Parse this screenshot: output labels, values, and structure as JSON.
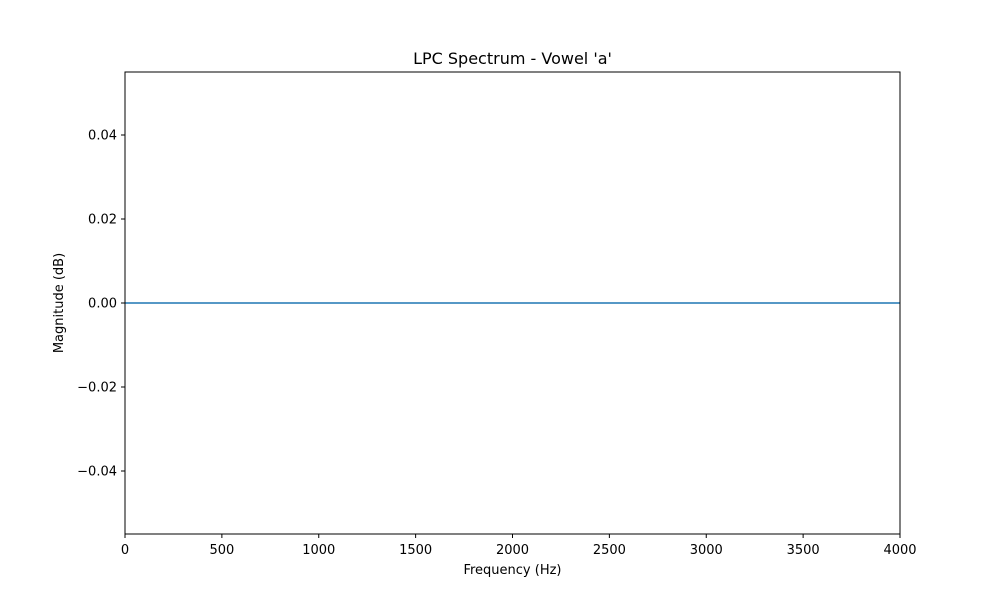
{
  "chart_data": {
    "type": "line",
    "title": "LPC Spectrum - Vowel 'a'",
    "xlabel": "Frequency (Hz)",
    "ylabel": "Magnitude (dB)",
    "xlim": [
      0,
      4000
    ],
    "ylim": [
      -0.055,
      0.055
    ],
    "xticks": [
      0,
      500,
      1000,
      1500,
      2000,
      2500,
      3000,
      3500,
      4000
    ],
    "xtick_labels": [
      "0",
      "500",
      "1000",
      "1500",
      "2000",
      "2500",
      "3000",
      "3500",
      "4000"
    ],
    "yticks": [
      -0.04,
      -0.02,
      0.0,
      0.02,
      0.04
    ],
    "ytick_labels": [
      "−0.04",
      "−0.02",
      "0.00",
      "0.02",
      "0.04"
    ],
    "grid": false,
    "series": [
      {
        "color": "#1f77b4",
        "x": [
          0,
          500,
          1000,
          1500,
          2000,
          2500,
          3000,
          3500,
          4000
        ],
        "y": [
          0,
          0,
          0,
          0,
          0,
          0,
          0,
          0,
          0
        ]
      }
    ]
  }
}
